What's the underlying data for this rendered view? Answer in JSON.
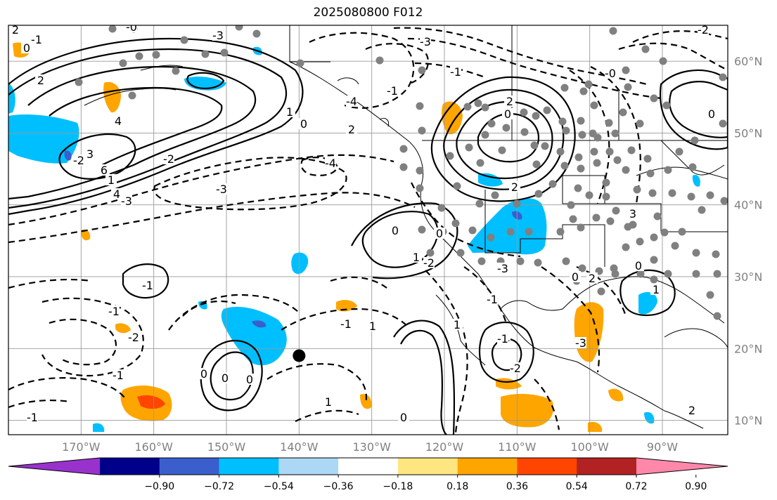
{
  "title": "2025080800 F012",
  "map": {
    "lon_range": [
      -180,
      -81
    ],
    "lat_range": [
      8,
      65
    ],
    "lat_labels": [
      "60°N",
      "50°N",
      "40°N",
      "30°N",
      "20°N",
      "10°N"
    ],
    "lat_values": [
      60,
      50,
      40,
      30,
      20,
      10
    ],
    "lon_labels": [
      "170°W",
      "160°W",
      "150°W",
      "140°W",
      "130°W",
      "120°W",
      "110°W",
      "100°W",
      "90°W"
    ],
    "lon_values": [
      -170,
      -160,
      -150,
      -140,
      -130,
      -120,
      -110,
      -100,
      -90
    ],
    "gridlines": true,
    "marker_location": {
      "lon": -140,
      "lat": 19
    },
    "contour_labels": [
      "2",
      "0",
      "-1",
      "2",
      "-0",
      "-3",
      "4",
      "-3",
      "-4",
      "1",
      "0",
      "-1",
      "2",
      "-4",
      "-3",
      "-2",
      "3",
      "1",
      "4",
      "-3",
      "6",
      "-2",
      "2",
      "0",
      "2",
      "1",
      "-1",
      "-1",
      "0",
      "0",
      "0",
      "-1",
      "-2",
      "-1",
      "1",
      "-1",
      "0",
      "1",
      "0",
      "-2",
      "0",
      "1",
      "-1",
      "-1",
      "-2",
      "0",
      "1",
      "2",
      "-2",
      "0",
      "0",
      "2",
      "-3",
      "-1",
      "-3",
      "3",
      "-1",
      "-0"
    ]
  },
  "colorbar": {
    "labels": [
      "−0.90",
      "−0.72",
      "−0.54",
      "−0.36",
      "−0.18",
      "0.18",
      "0.36",
      "0.54",
      "0.72",
      "0.90"
    ],
    "colors": [
      "#9932CC",
      "#00008B",
      "#3A5FCD",
      "#00BFFF",
      "#ADD8F5",
      "#FFFFFF",
      "#FFE680",
      "#FFA500",
      "#FF4500",
      "#B22222",
      "#FF88AA"
    ]
  }
}
